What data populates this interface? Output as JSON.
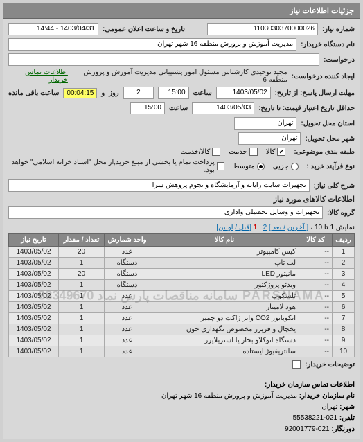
{
  "header": {
    "title": "جزئیات اطلاعات نیاز"
  },
  "top": {
    "need_no_label": "شماره نیاز:",
    "need_no": "1103030370000026",
    "announce_label": "تاریخ و ساعت اعلان عمومی:",
    "announce_value": "1403/04/31 - 14:44"
  },
  "buyer": {
    "org_label": "نام دستگاه خریدار:",
    "org_value": "مدیریت آموزش و پرورش منطقه 16 شهر تهران",
    "request_label": "درخواست:",
    "creator_label": "ایجاد کننده درخواست:",
    "creator_value": "مجید توحیدی کارشناس مسئول امور پشتیبانی مدیریت آموزش و پرورش منطقه 6",
    "contact_link": "اطلاعات تماس خریدار"
  },
  "deadlines": {
    "reply_from_label": "مهلت ارسال پاسخ: از تاریخ:",
    "reply_date": "1403/05/02",
    "reply_time_label": "ساعت",
    "reply_time": "15:00",
    "days_and": "و",
    "days_value": "2",
    "days_label": "روز",
    "remain_value": "00:04:15",
    "remain_label": "ساعت باقی مانده",
    "price_from_label": "حداقل تاریخ اعتبار قیمت: تا تاریخ:",
    "price_date": "1403/05/03",
    "price_time": "15:00"
  },
  "location": {
    "province_label": "استان محل تحویل:",
    "province": "تهران",
    "city_label": "شهر محل تحویل:",
    "city": "تهران"
  },
  "subject": {
    "cat_label": "طبقه بندی موضوعی:",
    "cat_goods": "کالا",
    "cat_service": "خدمت",
    "cat_both": "کالا/خدمت",
    "buy_type_label": "نوع فرآیند خرید :",
    "buy_type_small": "جزیی",
    "buy_type_mid": "متوسط",
    "buy_note": "پرداخت تمام یا بخشی از مبلغ خرید,از محل \"اسناد خزانه اسلامی\" خواهد بود."
  },
  "need": {
    "desc_label": "شرح کلی نیاز:",
    "desc_value": "تجهیزات سایت رایانه و آزمایشگاه و نجوم پژوهش سرا"
  },
  "goods_header": "اطلاعات کالاهای مورد نیاز",
  "group": {
    "label": "گروه کالا:",
    "value": "تجهیزات و وسایل تحصیلی واداری"
  },
  "pager": {
    "summary_pre": "نمایش 1 تا 10 ،",
    "last": "[ آخرین",
    "next": "/ بعد ]",
    "p2": "2",
    "p1": "1",
    "prev": "[قبل /",
    "first": "اولین]"
  },
  "table": {
    "columns": [
      "ردیف",
      "کد کالا",
      "نام کالا",
      "واحد شمارش",
      "تعداد / مقدار",
      "تاریخ نیاز"
    ],
    "col_widths": [
      "32px",
      "48px",
      "auto",
      "66px",
      "66px",
      "72px"
    ],
    "rows": [
      [
        "1",
        "--",
        "کیس کامپیوتر",
        "عدد",
        "20",
        "1403/05/02"
      ],
      [
        "2",
        "--",
        "لپ تاپ",
        "دستگاه",
        "1",
        "1403/05/02"
      ],
      [
        "3",
        "--",
        "مانیتور LED",
        "دستگاه",
        "20",
        "1403/05/02"
      ],
      [
        "4",
        "--",
        "ویدئو پروژکتور",
        "دستگاه",
        "1",
        "1403/05/02"
      ],
      [
        "5",
        "--",
        "تلسکوپ",
        "عدد",
        "1",
        "1403/05/02"
      ],
      [
        "6",
        "--",
        "هود لامینار",
        "عدد",
        "1",
        "1403/05/02"
      ],
      [
        "7",
        "--",
        "انکوباتور CO2 واتر ژاکت دو چمبر",
        "عدد",
        "1",
        "1403/05/02"
      ],
      [
        "8",
        "--",
        "یخچال و فریزر مخصوص نگهداری خون",
        "عدد",
        "1",
        "1403/05/02"
      ],
      [
        "9",
        "--",
        "دستگاه اتوکلاو بخار یا استریلایزر",
        "عدد",
        "1",
        "1403/05/02"
      ],
      [
        "10",
        "--",
        "سانتریفیوژ ایستاده",
        "عدد",
        "1",
        "1403/05/02"
      ]
    ],
    "watermark": "PARSNAMA سامانه مناقصات پارس نماد 88349670"
  },
  "partial": {
    "label": "توضیحات خریدار:",
    "checkbox_label": ""
  },
  "contact": {
    "header": "اطلاعات تماس سازمان خریدار:",
    "org_label": "نام سازمان خریدار:",
    "org": "مدیریت آموزش و پرورش منطقه 16 شهر تهران",
    "city_label": "شهر:",
    "city": "تهران",
    "tel_label": "تلفن:",
    "tel": "021-55538221",
    "fax_label": "دورنگار:",
    "fax": "021-92001779"
  }
}
